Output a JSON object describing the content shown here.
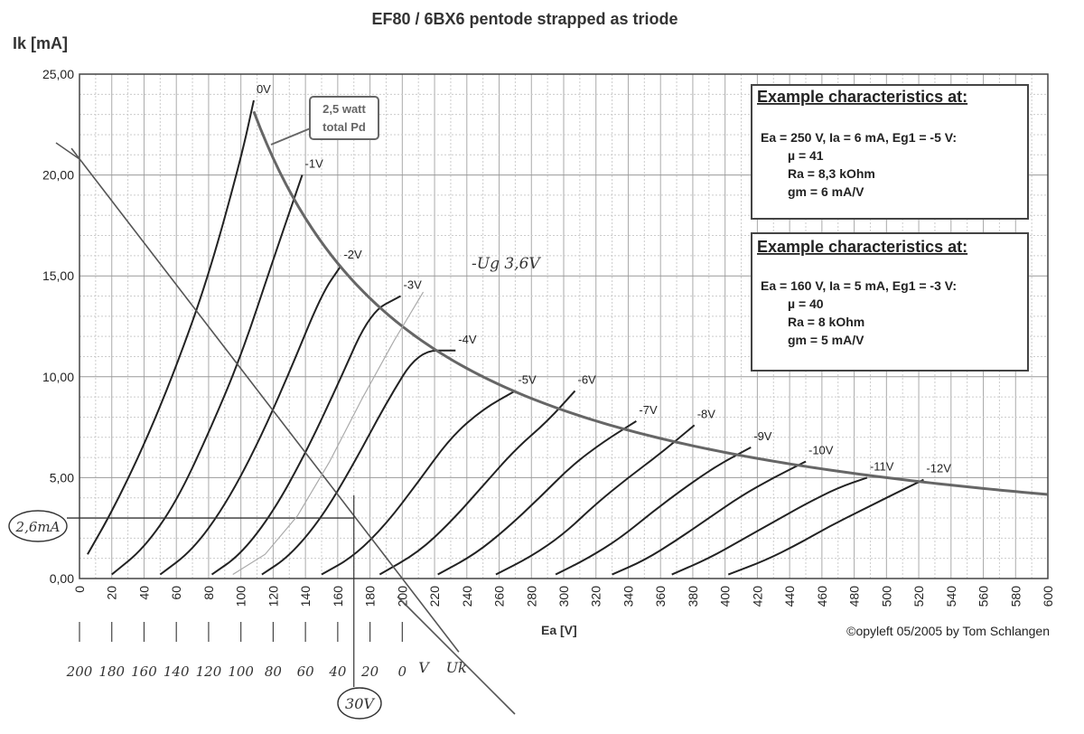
{
  "chart_data": {
    "type": "line",
    "title": "EF80 / 6BX6 pentode strapped as triode",
    "ylabel": "Ik [mA]",
    "xlabel": "Ea [V]",
    "xlim": [
      0,
      600
    ],
    "ylim": [
      0,
      25
    ],
    "x_ticks": [
      0,
      20,
      40,
      60,
      80,
      100,
      120,
      140,
      160,
      180,
      200,
      220,
      240,
      260,
      280,
      300,
      320,
      340,
      360,
      380,
      400,
      420,
      440,
      460,
      480,
      500,
      520,
      540,
      560,
      580,
      600
    ],
    "y_ticks": [
      "0,00",
      "5,00",
      "10,00",
      "15,00",
      "20,00",
      "25,00"
    ],
    "grid": true,
    "series": [
      {
        "name": "0V",
        "points": [
          [
            5,
            1.2
          ],
          [
            20,
            3.3
          ],
          [
            40,
            6.6
          ],
          [
            60,
            10.5
          ],
          [
            80,
            15.0
          ],
          [
            100,
            20.8
          ],
          [
            108,
            23.7
          ]
        ]
      },
      {
        "name": "-1V",
        "points": [
          [
            20,
            0.2
          ],
          [
            40,
            1.5
          ],
          [
            60,
            3.8
          ],
          [
            80,
            7.2
          ],
          [
            100,
            11.0
          ],
          [
            120,
            15.8
          ],
          [
            138,
            20.0
          ]
        ]
      },
      {
        "name": "-2V",
        "points": [
          [
            50,
            0.2
          ],
          [
            70,
            1.4
          ],
          [
            90,
            3.6
          ],
          [
            110,
            6.6
          ],
          [
            130,
            10.2
          ],
          [
            150,
            14.1
          ],
          [
            162,
            15.5
          ]
        ]
      },
      {
        "name": "-3V",
        "points": [
          [
            82,
            0.2
          ],
          [
            100,
            1.2
          ],
          [
            120,
            3.3
          ],
          [
            140,
            6.2
          ],
          [
            160,
            9.6
          ],
          [
            180,
            13.2
          ],
          [
            199,
            14.0
          ]
        ]
      },
      {
        "name": "-4V",
        "points": [
          [
            113,
            0.2
          ],
          [
            130,
            1.1
          ],
          [
            150,
            3.0
          ],
          [
            170,
            5.7
          ],
          [
            190,
            8.7
          ],
          [
            210,
            11.3
          ],
          [
            233,
            11.3
          ]
        ]
      },
      {
        "name": "-5V",
        "points": [
          [
            150,
            0.2
          ],
          [
            170,
            1.1
          ],
          [
            190,
            2.7
          ],
          [
            210,
            4.8
          ],
          [
            230,
            7.0
          ],
          [
            250,
            8.4
          ],
          [
            270,
            9.3
          ]
        ]
      },
      {
        "name": "-6V",
        "points": [
          [
            186,
            0.2
          ],
          [
            210,
            1.3
          ],
          [
            230,
            2.8
          ],
          [
            250,
            4.6
          ],
          [
            270,
            6.4
          ],
          [
            290,
            7.8
          ],
          [
            307,
            9.3
          ]
        ]
      },
      {
        "name": "-7V",
        "points": [
          [
            222,
            0.2
          ],
          [
            245,
            1.2
          ],
          [
            265,
            2.5
          ],
          [
            285,
            4.0
          ],
          [
            305,
            5.6
          ],
          [
            325,
            6.8
          ],
          [
            345,
            7.8
          ]
        ]
      },
      {
        "name": "-8V",
        "points": [
          [
            258,
            0.2
          ],
          [
            280,
            1.1
          ],
          [
            300,
            2.2
          ],
          [
            320,
            3.7
          ],
          [
            340,
            5.0
          ],
          [
            360,
            6.2
          ],
          [
            381,
            7.6
          ]
        ]
      },
      {
        "name": "-9V",
        "points": [
          [
            295,
            0.2
          ],
          [
            315,
            1.0
          ],
          [
            335,
            2.0
          ],
          [
            355,
            3.3
          ],
          [
            375,
            4.5
          ],
          [
            395,
            5.6
          ],
          [
            416,
            6.5
          ]
        ]
      },
      {
        "name": "-10V",
        "points": [
          [
            330,
            0.2
          ],
          [
            350,
            0.9
          ],
          [
            370,
            1.9
          ],
          [
            390,
            3.0
          ],
          [
            410,
            4.1
          ],
          [
            430,
            5.0
          ],
          [
            450,
            5.8
          ]
        ]
      },
      {
        "name": "-11V",
        "points": [
          [
            367,
            0.2
          ],
          [
            390,
            1.0
          ],
          [
            410,
            1.9
          ],
          [
            430,
            2.8
          ],
          [
            450,
            3.7
          ],
          [
            470,
            4.5
          ],
          [
            488,
            5.0
          ]
        ]
      },
      {
        "name": "-12V",
        "points": [
          [
            402,
            0.2
          ],
          [
            425,
            0.9
          ],
          [
            445,
            1.7
          ],
          [
            465,
            2.6
          ],
          [
            485,
            3.4
          ],
          [
            505,
            4.2
          ],
          [
            523,
            4.9
          ]
        ]
      }
    ],
    "pd_curve": {
      "label": "2,5 watt total Pd",
      "watts": 2.5,
      "x_from": 108,
      "x_to": 600
    },
    "load_line": {
      "x_intercept": 200,
      "y_intercept": 20.8
    },
    "operating_point": {
      "x": 170,
      "y": 3.0
    },
    "annotations": [
      {
        "title": "Example characteristics at:",
        "lines": [
          "Ea = 250 V, Ia = 6 mA, Eg1 = -5 V:",
          "µ   = 41",
          "Ra  = 8,3 kOhm",
          "gm = 6 mA/V"
        ]
      },
      {
        "title": "Example characteristics at:",
        "lines": [
          "Ea = 160 V, Ia = 5 mA, Eg1 = -3 V:",
          "µ   = 40",
          "Ra  = 8 kOhm",
          "gm = 5 mA/V"
        ]
      }
    ],
    "copyright": "©opyleft 05/2005 by Tom Schlangen",
    "handwritten": {
      "grid_label": "-Ug 3,6V",
      "current": "2,6mA",
      "voltage": "30V",
      "uk_scale": [
        "200",
        "180",
        "160",
        "140",
        "120",
        "100",
        "80",
        "60",
        "40",
        "20",
        "0",
        "V",
        "Uk"
      ]
    }
  }
}
